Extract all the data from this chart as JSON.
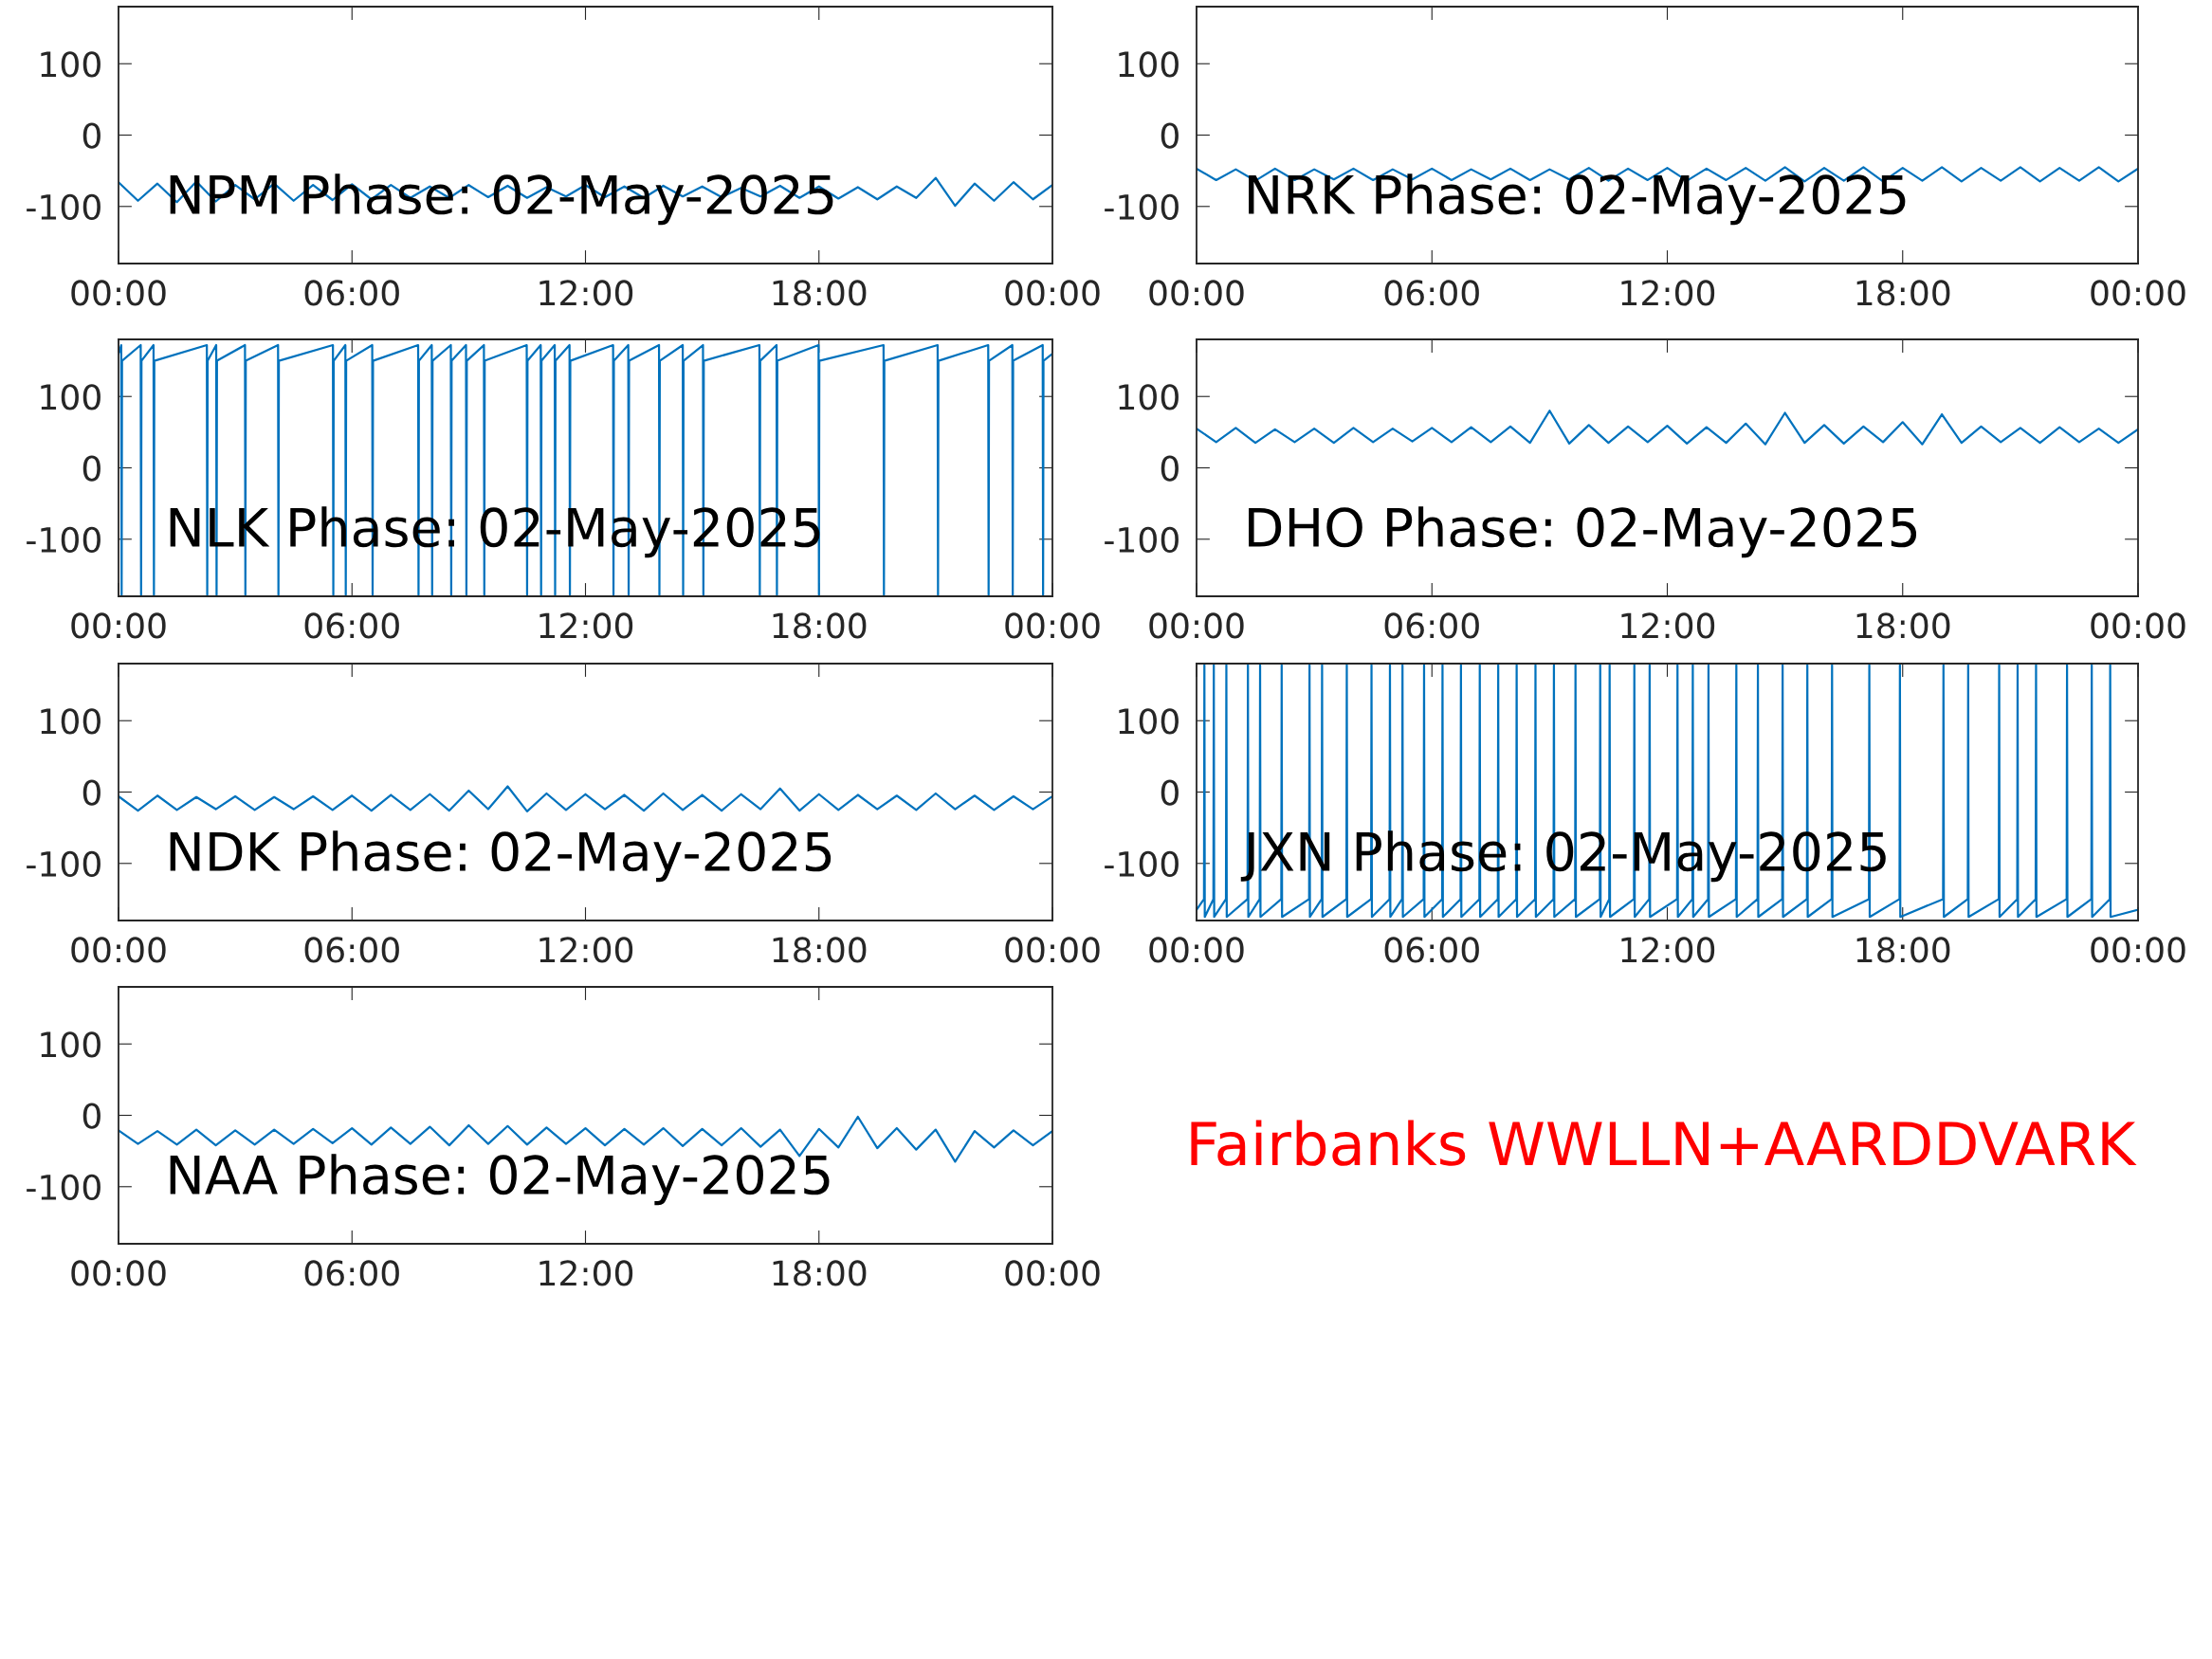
{
  "chart_data": [
    {
      "type": "line",
      "title": "NPM Phase: 02-May-2025",
      "xlim": [
        0,
        24
      ],
      "xticks": [
        {
          "value": 0,
          "label": "00:00"
        },
        {
          "value": 6,
          "label": "06:00"
        },
        {
          "value": 12,
          "label": "12:00"
        },
        {
          "value": 18,
          "label": "18:00"
        },
        {
          "value": 24,
          "label": "00:00"
        }
      ],
      "ylim": [
        -180,
        180
      ],
      "yticks": [
        -100,
        0,
        100
      ],
      "x": [
        0,
        0.5,
        1,
        1.5,
        2,
        2.5,
        3,
        3.5,
        4,
        4.5,
        5,
        5.5,
        6,
        6.5,
        7,
        7.5,
        8,
        8.5,
        9,
        9.5,
        10,
        10.5,
        11,
        11.5,
        12,
        12.5,
        13,
        13.5,
        14,
        14.5,
        15,
        15.5,
        16,
        16.5,
        17,
        17.5,
        18,
        18.5,
        19,
        19.5,
        20,
        20.5,
        21,
        21.5,
        22,
        22.5,
        23,
        23.5,
        24
      ],
      "series": [
        {
          "color": "#0072bd",
          "values": [
            -66,
            -92,
            -68,
            -94,
            -65,
            -93,
            -70,
            -90,
            -68,
            -92,
            -70,
            -91,
            -69,
            -90,
            -70,
            -88,
            -72,
            -88,
            -70,
            -87,
            -71,
            -88,
            -73,
            -86,
            -70,
            -87,
            -72,
            -88,
            -71,
            -86,
            -72,
            -87,
            -74,
            -86,
            -71,
            -88,
            -72,
            -89,
            -73,
            -90,
            -72,
            -88,
            -60,
            -99,
            -68,
            -92,
            -66,
            -90,
            -70
          ]
        }
      ]
    },
    {
      "type": "line",
      "title": "NRK Phase: 02-May-2025",
      "xlim": [
        0,
        24
      ],
      "xticks": [
        {
          "value": 0,
          "label": "00:00"
        },
        {
          "value": 6,
          "label": "06:00"
        },
        {
          "value": 12,
          "label": "12:00"
        },
        {
          "value": 18,
          "label": "18:00"
        },
        {
          "value": 24,
          "label": "00:00"
        }
      ],
      "ylim": [
        -180,
        180
      ],
      "yticks": [
        -100,
        0,
        100
      ],
      "x": [
        0,
        0.5,
        1,
        1.5,
        2,
        2.5,
        3,
        3.5,
        4,
        4.5,
        5,
        5.5,
        6,
        6.5,
        7,
        7.5,
        8,
        8.5,
        9,
        9.5,
        10,
        10.5,
        11,
        11.5,
        12,
        12.5,
        13,
        13.5,
        14,
        14.5,
        15,
        15.5,
        16,
        16.5,
        17,
        17.5,
        18,
        18.5,
        19,
        19.5,
        20,
        20.5,
        21,
        21.5,
        22,
        22.5,
        23,
        23.5,
        24
      ],
      "series": [
        {
          "color": "#0072bd",
          "values": [
            -47,
            -63,
            -48,
            -64,
            -47,
            -63,
            -48,
            -62,
            -47,
            -63,
            -48,
            -62,
            -47,
            -63,
            -48,
            -62,
            -47,
            -63,
            -48,
            -62,
            -46,
            -64,
            -47,
            -63,
            -46,
            -64,
            -47,
            -63,
            -46,
            -64,
            -45,
            -65,
            -46,
            -64,
            -45,
            -65,
            -46,
            -64,
            -45,
            -65,
            -46,
            -64,
            -45,
            -65,
            -46,
            -64,
            -45,
            -65,
            -47
          ]
        }
      ]
    },
    {
      "type": "line",
      "title": "NLK Phase: 02-May-2025",
      "xlim": [
        0,
        24
      ],
      "xticks": [
        {
          "value": 0,
          "label": "00:00"
        },
        {
          "value": 6,
          "label": "06:00"
        },
        {
          "value": 12,
          "label": "12:00"
        },
        {
          "value": 18,
          "label": "18:00"
        },
        {
          "value": 24,
          "label": "00:00"
        }
      ],
      "ylim": [
        -180,
        180
      ],
      "yticks": [
        -100,
        0,
        100
      ],
      "x": [
        0,
        0.07,
        0.08,
        0.09,
        0.57,
        0.58,
        0.59,
        0.9,
        0.91,
        0.92,
        2.27,
        2.28,
        2.29,
        2.51,
        2.52,
        2.53,
        3.25,
        3.26,
        3.27,
        4.1,
        4.11,
        4.12,
        5.51,
        5.52,
        5.53,
        5.83,
        5.84,
        5.85,
        6.52,
        6.53,
        6.54,
        7.7,
        7.71,
        7.72,
        8.05,
        8.06,
        8.07,
        8.54,
        8.55,
        8.56,
        8.93,
        8.94,
        8.95,
        9.39,
        9.4,
        9.41,
        10.49,
        10.5,
        10.51,
        10.85,
        10.86,
        10.87,
        11.21,
        11.22,
        11.23,
        11.59,
        11.6,
        11.61,
        12.71,
        12.72,
        12.73,
        13.1,
        13.11,
        13.12,
        13.89,
        13.9,
        13.91,
        14.5,
        14.51,
        14.52,
        15.02,
        15.03,
        15.04,
        16.47,
        16.48,
        16.49,
        16.91,
        16.92,
        16.93,
        17.99,
        18.0,
        18.01,
        19.66,
        19.67,
        19.68,
        21.05,
        21.06,
        21.07,
        22.35,
        22.36,
        22.37,
        22.97,
        22.98,
        22.99,
        23.75,
        23.76,
        23.77,
        24
      ],
      "series": [
        {
          "color": "#0072bd",
          "values": [
            160,
            172,
            -178,
            150,
            172,
            -178,
            150,
            172,
            -178,
            150,
            172,
            -178,
            150,
            172,
            -178,
            150,
            172,
            -178,
            150,
            172,
            -178,
            150,
            172,
            -178,
            150,
            172,
            -178,
            150,
            172,
            -178,
            150,
            172,
            -178,
            150,
            172,
            -178,
            150,
            172,
            -178,
            150,
            172,
            -178,
            150,
            172,
            -178,
            150,
            172,
            -178,
            150,
            172,
            -178,
            150,
            172,
            -178,
            150,
            172,
            -178,
            150,
            172,
            -178,
            150,
            172,
            -178,
            150,
            172,
            -178,
            150,
            172,
            -178,
            150,
            172,
            -178,
            150,
            172,
            -178,
            150,
            172,
            -178,
            150,
            172,
            -178,
            150,
            172,
            -178,
            150,
            172,
            -178,
            150,
            172,
            -178,
            150,
            172,
            -178,
            150,
            172,
            -178,
            150,
            160
          ]
        }
      ]
    },
    {
      "type": "line",
      "title": "DHO Phase: 02-May-2025",
      "xlim": [
        0,
        24
      ],
      "xticks": [
        {
          "value": 0,
          "label": "00:00"
        },
        {
          "value": 6,
          "label": "06:00"
        },
        {
          "value": 12,
          "label": "12:00"
        },
        {
          "value": 18,
          "label": "18:00"
        },
        {
          "value": 24,
          "label": "00:00"
        }
      ],
      "ylim": [
        -180,
        180
      ],
      "yticks": [
        -100,
        0,
        100
      ],
      "x": [
        0,
        0.5,
        1,
        1.5,
        2,
        2.5,
        3,
        3.5,
        4,
        4.5,
        5,
        5.5,
        6,
        6.5,
        7,
        7.5,
        8,
        8.5,
        9,
        9.5,
        10,
        10.5,
        11,
        11.5,
        12,
        12.5,
        13,
        13.5,
        14,
        14.5,
        15,
        15.5,
        16,
        16.5,
        17,
        17.5,
        18,
        18.5,
        19,
        19.5,
        20,
        20.5,
        21,
        21.5,
        22,
        22.5,
        23,
        23.5,
        24
      ],
      "series": [
        {
          "color": "#0072bd",
          "values": [
            55,
            36,
            56,
            35,
            54,
            36,
            55,
            35,
            56,
            36,
            55,
            37,
            56,
            36,
            57,
            36,
            58,
            35,
            80,
            34,
            60,
            35,
            58,
            36,
            59,
            34,
            57,
            35,
            62,
            33,
            77,
            35,
            60,
            34,
            58,
            36,
            64,
            33,
            75,
            35,
            58,
            36,
            56,
            35,
            57,
            36,
            55,
            35,
            54
          ]
        }
      ]
    },
    {
      "type": "line",
      "title": "NDK Phase: 02-May-2025",
      "xlim": [
        0,
        24
      ],
      "xticks": [
        {
          "value": 0,
          "label": "00:00"
        },
        {
          "value": 6,
          "label": "06:00"
        },
        {
          "value": 12,
          "label": "12:00"
        },
        {
          "value": 18,
          "label": "18:00"
        },
        {
          "value": 24,
          "label": "00:00"
        }
      ],
      "ylim": [
        -180,
        180
      ],
      "yticks": [
        -100,
        0,
        100
      ],
      "x": [
        0,
        0.5,
        1,
        1.5,
        2,
        2.5,
        3,
        3.5,
        4,
        4.5,
        5,
        5.5,
        6,
        6.5,
        7,
        7.5,
        8,
        8.5,
        9,
        9.5,
        10,
        10.5,
        11,
        11.5,
        12,
        12.5,
        13,
        13.5,
        14,
        14.5,
        15,
        15.5,
        16,
        16.5,
        17,
        17.5,
        18,
        18.5,
        19,
        19.5,
        20,
        20.5,
        21,
        21.5,
        22,
        22.5,
        23,
        23.5,
        24
      ],
      "series": [
        {
          "color": "#0072bd",
          "values": [
            -6,
            -26,
            -5,
            -25,
            -7,
            -24,
            -6,
            -25,
            -7,
            -24,
            -6,
            -25,
            -5,
            -26,
            -4,
            -25,
            -3,
            -26,
            2,
            -24,
            8,
            -27,
            -2,
            -25,
            -3,
            -24,
            -4,
            -26,
            -2,
            -25,
            -4,
            -26,
            -3,
            -24,
            5,
            -26,
            -3,
            -25,
            -4,
            -24,
            -5,
            -25,
            -2,
            -24,
            -5,
            -25,
            -6,
            -24,
            -6
          ]
        }
      ]
    },
    {
      "type": "line",
      "title": "JXN Phase: 02-May-2025",
      "xlim": [
        0,
        24
      ],
      "xticks": [
        {
          "value": 0,
          "label": "00:00"
        },
        {
          "value": 6,
          "label": "06:00"
        },
        {
          "value": 12,
          "label": "12:00"
        },
        {
          "value": 18,
          "label": "18:00"
        },
        {
          "value": 24,
          "label": "00:00"
        }
      ],
      "ylim": [
        -180,
        180
      ],
      "yticks": [
        -100,
        0,
        100
      ],
      "x": [
        0,
        0.19,
        0.2,
        0.21,
        0.43,
        0.44,
        0.45,
        0.75,
        0.76,
        0.77,
        1.3,
        1.31,
        1.32,
        1.61,
        1.62,
        1.63,
        2.16,
        2.17,
        2.18,
        2.87,
        2.88,
        2.89,
        3.19,
        3.2,
        3.21,
        3.82,
        3.83,
        3.84,
        4.45,
        4.46,
        4.47,
        4.92,
        4.93,
        4.94,
        5.24,
        5.25,
        5.26,
        5.79,
        5.8,
        5.81,
        6.26,
        6.27,
        6.28,
        6.73,
        6.74,
        6.75,
        7.21,
        7.22,
        7.23,
        7.68,
        7.69,
        7.7,
        8.15,
        8.16,
        8.17,
        8.63,
        8.64,
        8.65,
        9.1,
        9.11,
        9.12,
        9.65,
        9.66,
        9.67,
        10.28,
        10.29,
        10.3,
        10.52,
        10.53,
        10.54,
        11.15,
        11.16,
        11.17,
        11.54,
        11.55,
        11.56,
        12.25,
        12.26,
        12.27,
        12.64,
        12.65,
        12.66,
        13.04,
        13.05,
        13.06,
        13.75,
        13.76,
        13.77,
        14.3,
        14.31,
        14.32,
        14.93,
        14.94,
        14.95,
        15.56,
        15.57,
        15.58,
        16.19,
        16.2,
        16.21,
        17.14,
        17.15,
        17.16,
        17.92,
        17.93,
        17.94,
        19.03,
        19.04,
        19.05,
        19.66,
        19.67,
        19.68,
        20.45,
        20.46,
        20.47,
        20.92,
        20.93,
        20.94,
        21.39,
        21.4,
        21.41,
        22.18,
        22.19,
        22.2,
        22.81,
        22.82,
        22.83,
        23.28,
        23.29,
        23.3,
        24
      ],
      "series": [
        {
          "color": "#0072bd",
          "values": [
            -165,
            -150,
            178,
            -175,
            -150,
            178,
            -175,
            -150,
            178,
            -175,
            -150,
            178,
            -175,
            -150,
            178,
            -175,
            -150,
            178,
            -175,
            -150,
            178,
            -175,
            -150,
            178,
            -175,
            -150,
            178,
            -175,
            -150,
            178,
            -175,
            -150,
            178,
            -175,
            -150,
            178,
            -175,
            -150,
            178,
            -175,
            -150,
            178,
            -175,
            -150,
            178,
            -175,
            -150,
            178,
            -175,
            -150,
            178,
            -175,
            -150,
            178,
            -175,
            -150,
            178,
            -175,
            -150,
            178,
            -175,
            -150,
            178,
            -175,
            -150,
            178,
            -175,
            -150,
            178,
            -175,
            -150,
            178,
            -175,
            -150,
            178,
            -175,
            -150,
            178,
            -175,
            -150,
            178,
            -175,
            -150,
            178,
            -175,
            -150,
            178,
            -175,
            -150,
            178,
            -175,
            -150,
            178,
            -175,
            -150,
            178,
            -175,
            -150,
            178,
            -175,
            -150,
            178,
            -175,
            -150,
            178,
            -175,
            -150,
            178,
            -175,
            -150,
            178,
            -175,
            -150,
            178,
            -175,
            -150,
            178,
            -175,
            -150,
            178,
            -175,
            -150,
            178,
            -175,
            -150,
            178,
            -175,
            -150,
            178,
            -175,
            -165
          ]
        }
      ]
    },
    {
      "type": "line",
      "title": "NAA Phase: 02-May-2025",
      "xlim": [
        0,
        24
      ],
      "xticks": [
        {
          "value": 0,
          "label": "00:00"
        },
        {
          "value": 6,
          "label": "06:00"
        },
        {
          "value": 12,
          "label": "12:00"
        },
        {
          "value": 18,
          "label": "18:00"
        },
        {
          "value": 24,
          "label": "00:00"
        }
      ],
      "ylim": [
        -180,
        180
      ],
      "yticks": [
        -100,
        0,
        100
      ],
      "x": [
        0,
        0.5,
        1,
        1.5,
        2,
        2.5,
        3,
        3.5,
        4,
        4.5,
        5,
        5.5,
        6,
        6.5,
        7,
        7.5,
        8,
        8.5,
        9,
        9.5,
        10,
        10.5,
        11,
        11.5,
        12,
        12.5,
        13,
        13.5,
        14,
        14.5,
        15,
        15.5,
        16,
        16.5,
        17,
        17.5,
        18,
        18.5,
        19,
        19.5,
        20,
        20.5,
        21,
        21.5,
        22,
        22.5,
        23,
        23.5,
        24
      ],
      "series": [
        {
          "color": "#0072bd",
          "values": [
            -21,
            -40,
            -22,
            -41,
            -20,
            -42,
            -21,
            -41,
            -20,
            -40,
            -19,
            -39,
            -18,
            -41,
            -17,
            -40,
            -16,
            -42,
            -14,
            -40,
            -15,
            -41,
            -17,
            -40,
            -18,
            -42,
            -19,
            -41,
            -18,
            -43,
            -19,
            -42,
            -18,
            -44,
            -20,
            -57,
            -19,
            -45,
            -2,
            -46,
            -18,
            -48,
            -20,
            -65,
            -22,
            -45,
            -21,
            -42,
            -22
          ]
        }
      ],
      "annotations": [
        "Fairbanks WWLLN+AARDDVARK"
      ]
    }
  ]
}
